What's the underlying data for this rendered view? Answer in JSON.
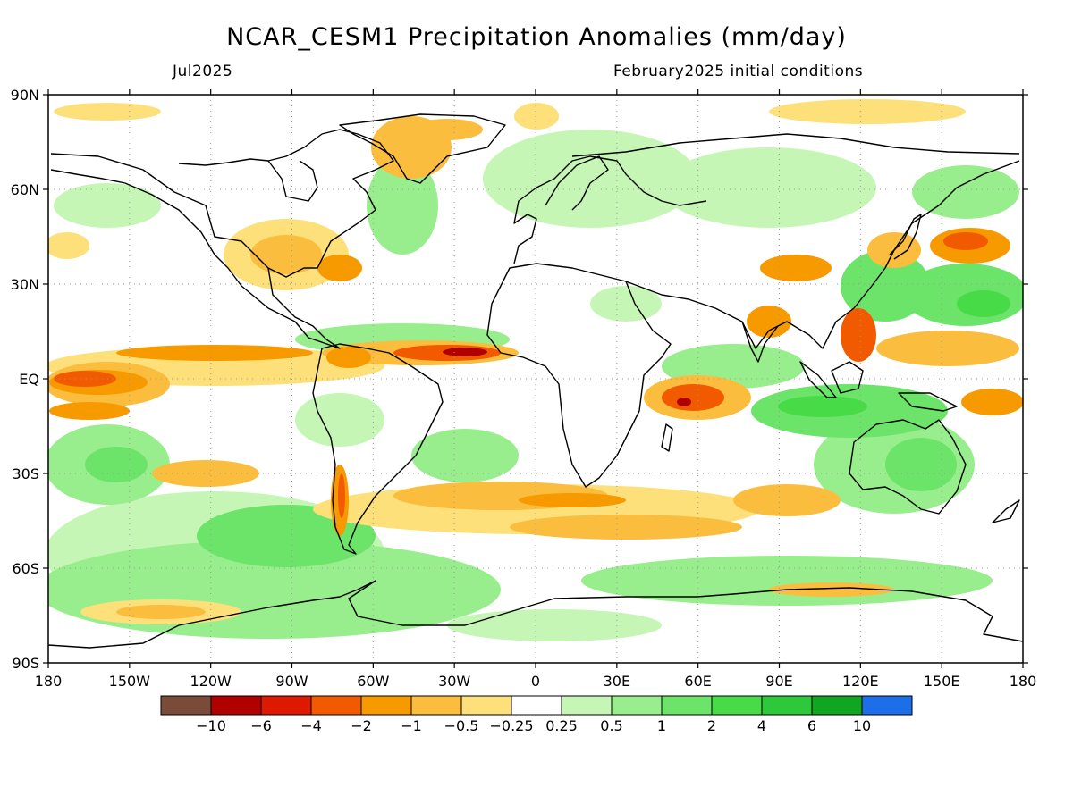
{
  "title": "NCAR_CESM1 Precipitation Anomalies (mm/day)",
  "subtitle_left": "Jul2025",
  "subtitle_right": "February2025 initial conditions",
  "lat_labels": [
    "90N",
    "60N",
    "30N",
    "EQ",
    "30S",
    "60S",
    "90S"
  ],
  "lon_labels": [
    "180",
    "150W",
    "120W",
    "90W",
    "60W",
    "30W",
    "0",
    "30E",
    "60E",
    "90E",
    "120E",
    "150E",
    "180"
  ],
  "colorbar": {
    "colors": [
      "#7b4b3a",
      "#b00000",
      "#dd1a00",
      "#f25a00",
      "#f79a00",
      "#fbbd3e",
      "#fde07a",
      "#ffffff",
      "#c6f6b5",
      "#98ee8c",
      "#6ce46a",
      "#48db48",
      "#2ec93a",
      "#12a51f",
      "#1d6fe9"
    ],
    "labels": [
      "-10",
      "-6",
      "-4",
      "-2",
      "-1",
      "-0.5",
      "-0.25",
      "0.25",
      "0.5",
      "1",
      "2",
      "4",
      "6",
      "10"
    ]
  }
}
